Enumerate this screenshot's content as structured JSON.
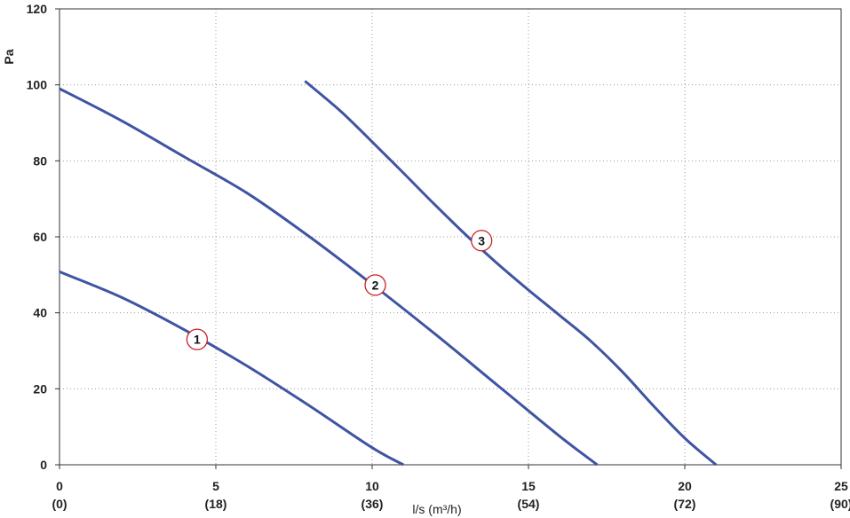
{
  "chart_data": {
    "type": "line",
    "title": "",
    "xlabel": "l/s (m³/h)",
    "ylabel": "Pa",
    "xlim": [
      0,
      25
    ],
    "ylim": [
      0,
      120
    ],
    "x_ticks": [
      {
        "value": 0,
        "label": "0",
        "sub": "(0)"
      },
      {
        "value": 5,
        "label": "5",
        "sub": "(18)"
      },
      {
        "value": 10,
        "label": "10",
        "sub": "(36)"
      },
      {
        "value": 15,
        "label": "15",
        "sub": "(54)"
      },
      {
        "value": 20,
        "label": "20",
        "sub": "(72)"
      },
      {
        "value": 25,
        "label": "25",
        "sub": "(90)"
      }
    ],
    "y_ticks": [
      0,
      20,
      40,
      60,
      80,
      100,
      120
    ],
    "grid": true,
    "colors": {
      "line": "#3f54a2",
      "marker_border": "#c8202a",
      "grid": "#9a9a9a",
      "axis": "#333333"
    },
    "series": [
      {
        "name": "1",
        "label": "1",
        "label_at": [
          4.4,
          33
        ],
        "points": [
          [
            0,
            50.8
          ],
          [
            2,
            44
          ],
          [
            4,
            35.5
          ],
          [
            6,
            26
          ],
          [
            8,
            15.5
          ],
          [
            10,
            4.5
          ],
          [
            11,
            0
          ]
        ]
      },
      {
        "name": "2",
        "label": "2",
        "label_at": [
          10.1,
          47.3
        ],
        "points": [
          [
            0,
            99
          ],
          [
            2,
            90.5
          ],
          [
            4,
            81
          ],
          [
            6,
            71.5
          ],
          [
            8,
            60
          ],
          [
            10,
            47.5
          ],
          [
            12,
            34.5
          ],
          [
            14,
            21
          ],
          [
            16,
            7.5
          ],
          [
            17.2,
            0
          ]
        ]
      },
      {
        "name": "3",
        "label": "3",
        "label_at": [
          13.5,
          59
        ],
        "points": [
          [
            7.85,
            101
          ],
          [
            9,
            93
          ],
          [
            10,
            85
          ],
          [
            11,
            76.8
          ],
          [
            12,
            68.5
          ],
          [
            13,
            60.5
          ],
          [
            14,
            53
          ],
          [
            15,
            46
          ],
          [
            16,
            39.3
          ],
          [
            17,
            32.5
          ],
          [
            18,
            24.5
          ],
          [
            19,
            15.5
          ],
          [
            20,
            7
          ],
          [
            21,
            0
          ]
        ]
      }
    ]
  }
}
